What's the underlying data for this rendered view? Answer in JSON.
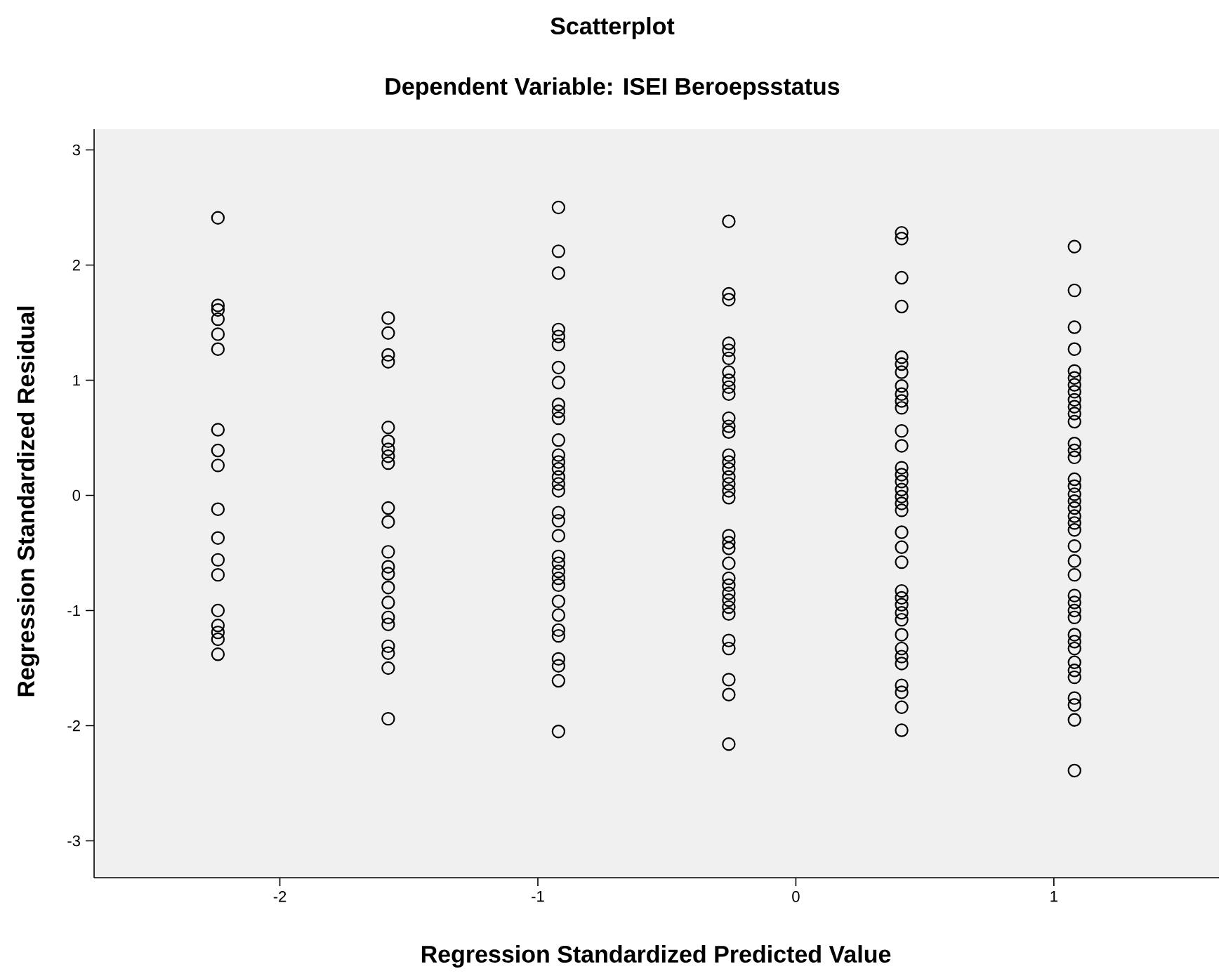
{
  "chart_data": {
    "type": "scatter",
    "title": "Scatterplot",
    "subtitle": "Dependent Variable: ISEI Beroepsstatus",
    "xlabel": "Regression Standardized Predicted Value",
    "ylabel": "Regression Standardized Residual",
    "xlim": [
      -2.72,
      1.64
    ],
    "ylim": [
      -3.32,
      3.18
    ],
    "xticks": [
      -2,
      -1,
      0,
      1
    ],
    "yticks": [
      -3,
      -2,
      -1,
      0,
      1,
      2,
      3
    ],
    "grid": false,
    "marker": "circle",
    "series": [
      {
        "color": "#000000",
        "x": [
          -2.24,
          -2.24,
          -2.24,
          -2.24,
          -2.24,
          -2.24,
          -2.24,
          -2.24,
          -2.24,
          -2.24,
          -2.24,
          -2.24,
          -2.24,
          -2.24,
          -2.24,
          -2.24,
          -2.24,
          -2.24,
          -1.58,
          -1.58,
          -1.58,
          -1.58,
          -1.58,
          -1.58,
          -1.58,
          -1.58,
          -1.58,
          -1.58,
          -1.58,
          -1.58,
          -1.58,
          -1.58,
          -1.58,
          -1.58,
          -1.58,
          -1.58,
          -1.58,
          -1.58,
          -1.58,
          -1.58,
          -0.92,
          -0.92,
          -0.92,
          -0.92,
          -0.92,
          -0.92,
          -0.92,
          -0.92,
          -0.92,
          -0.92,
          -0.92,
          -0.92,
          -0.92,
          -0.92,
          -0.92,
          -0.92,
          -0.92,
          -0.92,
          -0.92,
          -0.92,
          -0.92,
          -0.92,
          -0.92,
          -0.92,
          -0.92,
          -0.92,
          -0.92,
          -0.92,
          -0.92,
          -0.92,
          -0.92,
          -0.92,
          -0.92,
          -0.92,
          -0.26,
          -0.26,
          -0.26,
          -0.26,
          -0.26,
          -0.26,
          -0.26,
          -0.26,
          -0.26,
          -0.26,
          -0.26,
          -0.26,
          -0.26,
          -0.26,
          -0.26,
          -0.26,
          -0.26,
          -0.26,
          -0.26,
          -0.26,
          -0.26,
          -0.26,
          -0.26,
          -0.26,
          -0.26,
          -0.26,
          -0.26,
          -0.26,
          -0.26,
          -0.26,
          -0.26,
          -0.26,
          -0.26,
          -0.26,
          -0.26,
          0.41,
          0.41,
          0.41,
          0.41,
          0.41,
          0.41,
          0.41,
          0.41,
          0.41,
          0.41,
          0.41,
          0.41,
          0.41,
          0.41,
          0.41,
          0.41,
          0.41,
          0.41,
          0.41,
          0.41,
          0.41,
          0.41,
          0.41,
          0.41,
          0.41,
          0.41,
          0.41,
          0.41,
          0.41,
          0.41,
          0.41,
          0.41,
          0.41,
          0.41,
          0.41,
          0.41,
          1.08,
          1.08,
          1.08,
          1.08,
          1.08,
          1.08,
          1.08,
          1.08,
          1.08,
          1.08,
          1.08,
          1.08,
          1.08,
          1.08,
          1.08,
          1.08,
          1.08,
          1.08,
          1.08,
          1.08,
          1.08,
          1.08,
          1.08,
          1.08,
          1.08,
          1.08,
          1.08,
          1.08,
          1.08,
          1.08,
          1.08,
          1.08,
          1.08,
          1.08,
          1.08,
          1.08,
          1.08,
          1.08,
          1.08,
          1.08
        ],
        "values": [
          2.41,
          1.65,
          1.61,
          1.53,
          1.4,
          1.27,
          0.57,
          0.39,
          0.26,
          -0.12,
          -0.37,
          -0.56,
          -0.69,
          -1.0,
          -1.13,
          -1.19,
          -1.25,
          -1.38,
          1.54,
          1.41,
          1.22,
          1.16,
          0.59,
          0.47,
          0.4,
          0.34,
          0.28,
          -0.11,
          -0.23,
          -0.49,
          -0.62,
          -0.68,
          -0.8,
          -0.93,
          -1.06,
          -1.12,
          -1.31,
          -1.37,
          -1.5,
          -1.94,
          2.5,
          2.12,
          1.93,
          1.44,
          1.38,
          1.31,
          1.11,
          0.98,
          0.79,
          0.73,
          0.67,
          0.48,
          0.35,
          0.29,
          0.23,
          0.16,
          0.1,
          0.04,
          -0.15,
          -0.22,
          -0.35,
          -0.53,
          -0.59,
          -0.66,
          -0.72,
          -0.78,
          -0.92,
          -1.04,
          -1.17,
          -1.22,
          -1.42,
          -1.48,
          -1.61,
          -2.05,
          2.38,
          1.75,
          1.7,
          1.32,
          1.26,
          1.19,
          1.07,
          1.0,
          0.94,
          0.88,
          0.67,
          0.6,
          0.55,
          0.35,
          0.29,
          0.23,
          0.16,
          0.1,
          0.04,
          -0.02,
          -0.35,
          -0.41,
          -0.46,
          -0.59,
          -0.72,
          -0.78,
          -0.85,
          -0.91,
          -0.97,
          -1.03,
          -1.26,
          -1.33,
          -1.6,
          -1.73,
          -2.16,
          2.28,
          2.23,
          1.89,
          1.64,
          1.2,
          1.14,
          1.07,
          0.95,
          0.88,
          0.82,
          0.76,
          0.56,
          0.43,
          0.24,
          0.18,
          0.12,
          0.05,
          -0.01,
          -0.07,
          -0.13,
          -0.32,
          -0.45,
          -0.58,
          -0.83,
          -0.89,
          -0.95,
          -1.02,
          -1.08,
          -1.21,
          -1.33,
          -1.4,
          -1.46,
          -1.65,
          -1.71,
          -1.84,
          -2.04,
          2.16,
          1.78,
          1.46,
          1.27,
          1.08,
          1.02,
          0.96,
          0.9,
          0.83,
          0.77,
          0.71,
          0.64,
          0.45,
          0.39,
          0.33,
          0.14,
          0.08,
          0.01,
          -0.05,
          -0.11,
          -0.18,
          -0.24,
          -0.3,
          -0.44,
          -0.57,
          -0.69,
          -0.87,
          -0.93,
          -1.0,
          -1.06,
          -1.21,
          -1.27,
          -1.33,
          -1.45,
          -1.52,
          -1.58,
          -1.76,
          -1.82,
          -1.95,
          -2.39
        ]
      }
    ]
  }
}
